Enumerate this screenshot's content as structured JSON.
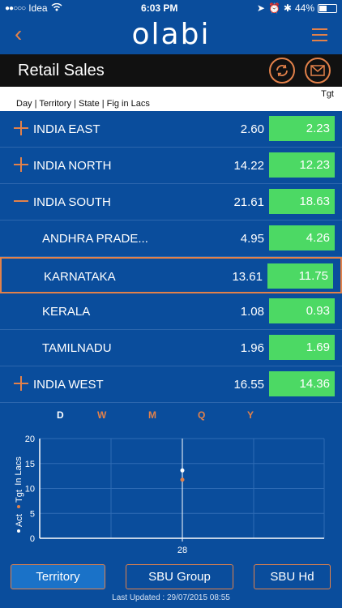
{
  "status": {
    "carrier": "Idea",
    "signal_dots": "●●○○○",
    "time": "6:03 PM",
    "battery": "44%",
    "battery_level": 0.44
  },
  "nav": {
    "logo": "olabi",
    "back_icon": "chevron-left-icon",
    "menu_icon": "hamburger-icon"
  },
  "header": {
    "title": "Retail Sales",
    "refresh_icon": "refresh-icon",
    "mail_icon": "mail-icon"
  },
  "subheader": {
    "crumbs": "Day | Territory | State | Fig in Lacs",
    "tgt_label": "Tgt"
  },
  "rows": [
    {
      "name": "INDIA EAST",
      "act": "2.60",
      "tgt": "2.23",
      "expander": "plus",
      "level": 0
    },
    {
      "name": "INDIA NORTH",
      "act": "14.22",
      "tgt": "12.23",
      "expander": "plus",
      "level": 0
    },
    {
      "name": "INDIA SOUTH",
      "act": "21.61",
      "tgt": "18.63",
      "expander": "minus",
      "level": 0
    },
    {
      "name": "ANDHRA PRADE...",
      "act": "4.95",
      "tgt": "4.26",
      "expander": "none",
      "level": 1
    },
    {
      "name": "KARNATAKA",
      "act": "13.61",
      "tgt": "11.75",
      "expander": "none",
      "level": 1,
      "selected": true
    },
    {
      "name": "KERALA",
      "act": "1.08",
      "tgt": "0.93",
      "expander": "none",
      "level": 1
    },
    {
      "name": "TAMILNADU",
      "act": "1.96",
      "tgt": "1.69",
      "expander": "none",
      "level": 1
    },
    {
      "name": "INDIA WEST",
      "act": "16.55",
      "tgt": "14.36",
      "expander": "plus",
      "level": 0
    }
  ],
  "periods": [
    {
      "label": "D",
      "active": true
    },
    {
      "label": "W",
      "active": false
    },
    {
      "label": "M",
      "active": false
    },
    {
      "label": "Q",
      "active": false
    },
    {
      "label": "Y",
      "active": false
    }
  ],
  "chart_data": {
    "type": "scatter",
    "ylabel": "In Lacs",
    "ylim": [
      0,
      20
    ],
    "yticks": [
      "0",
      "5",
      "10",
      "15",
      "20"
    ],
    "categories": [
      "28"
    ],
    "legend": [
      {
        "name": "Act",
        "color": "#ffffff"
      },
      {
        "name": "Tgt",
        "color": "#e2814a"
      }
    ],
    "series": [
      {
        "name": "Act",
        "values": [
          13.61
        ],
        "color": "#ffffff"
      },
      {
        "name": "Tgt",
        "values": [
          11.75
        ],
        "color": "#e2814a"
      }
    ],
    "grid": true
  },
  "buttons": [
    {
      "label": "Territory",
      "selected": true
    },
    {
      "label": "SBU Group",
      "selected": false
    },
    {
      "label": "SBU Hd",
      "selected": false
    }
  ],
  "footer": {
    "updated": "Last Updated : 29/07/2015 08:55"
  },
  "colors": {
    "accent": "#e2814a",
    "background": "#0a4d9c",
    "target_green": "#4cd964"
  }
}
